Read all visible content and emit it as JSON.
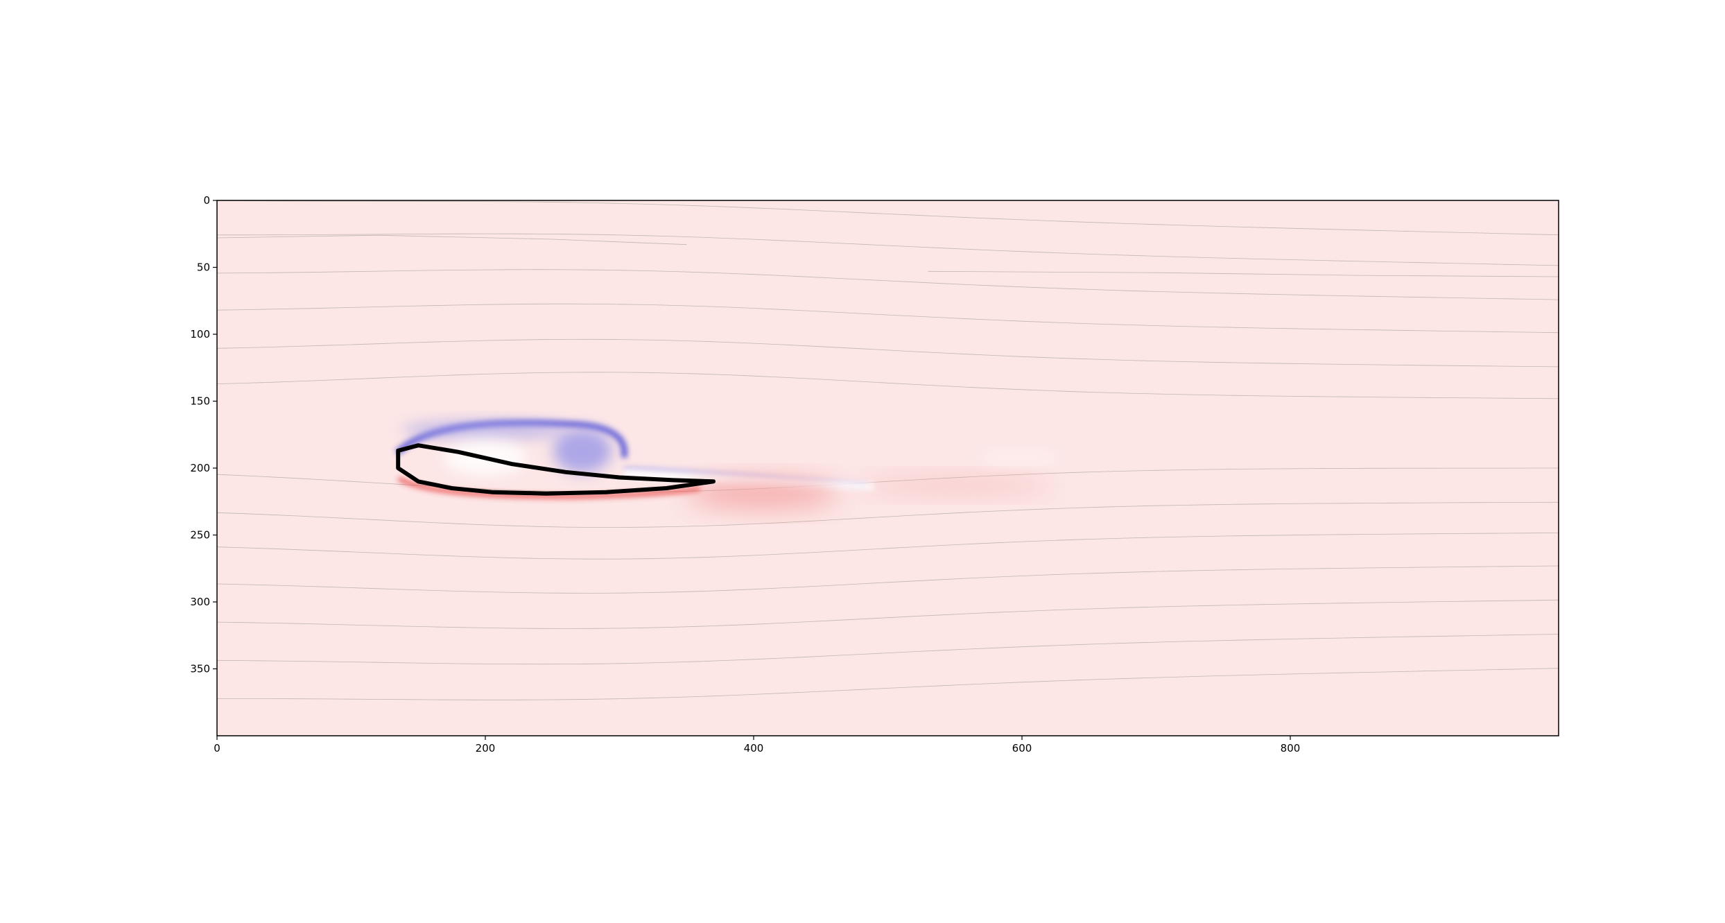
{
  "chart_data": {
    "type": "heatmap",
    "title": "",
    "xlabel": "",
    "ylabel": "",
    "xlim": [
      0,
      1000
    ],
    "ylim": [
      400,
      0
    ],
    "y_axis_inverted": true,
    "x_ticks": [
      0,
      200,
      400,
      600,
      800
    ],
    "x_tick_labels": [
      "0",
      "200",
      "400",
      "600",
      "800"
    ],
    "y_ticks": [
      0,
      50,
      100,
      150,
      200,
      250,
      300,
      350
    ],
    "y_tick_labels": [
      "0",
      "50",
      "100",
      "150",
      "200",
      "250",
      "300",
      "350"
    ],
    "grid": false,
    "legend": "none",
    "colors": {
      "background_field": "#fce6e6",
      "positive_vorticity": "#ef4c4c",
      "negative_vorticity": "#5b5bdc",
      "airfoil_outline": "#000000",
      "streamline": "#8f8f82"
    },
    "airfoil": {
      "x": [
        370,
        340,
        300,
        260,
        220,
        180,
        150,
        135,
        135,
        150,
        175,
        205,
        245,
        290,
        335,
        370
      ],
      "y": [
        210,
        209,
        207,
        203,
        197,
        188,
        183,
        187,
        200,
        210,
        215,
        218,
        219,
        218,
        215,
        210
      ]
    },
    "streamline_y0": [
      2,
      28,
      57,
      85,
      114,
      141,
      200,
      229,
      255,
      283,
      312,
      341,
      370
    ],
    "streamline_partial": [
      {
        "x": [
          0,
          120,
          250,
          350
        ],
        "y": [
          28,
          26,
          29,
          33
        ]
      },
      {
        "x": [
          530,
          700,
          850,
          1000
        ],
        "y": [
          53,
          54,
          56,
          57
        ]
      }
    ]
  }
}
